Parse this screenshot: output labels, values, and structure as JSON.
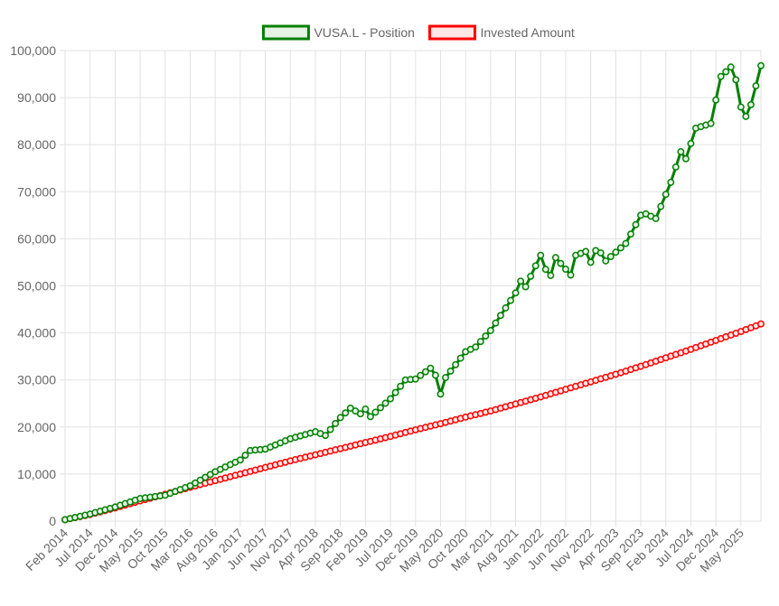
{
  "chart_data": {
    "type": "line",
    "legend_position": "top",
    "grid": true,
    "ylim": [
      0,
      100000
    ],
    "y_ticks": [
      "0",
      "10,000",
      "20,000",
      "30,000",
      "40,000",
      "50,000",
      "60,000",
      "70,000",
      "80,000",
      "90,000",
      "100,000"
    ],
    "x_start": "2014-02",
    "x_end": "2025-09",
    "x_tick_labels": [
      "Feb 2014",
      "Jul 2014",
      "Dec 2014",
      "May 2015",
      "Oct 2015",
      "Mar 2016",
      "Aug 2016",
      "Jan 2017",
      "Jun 2017",
      "Nov 2017",
      "Apr 2018",
      "Sep 2018",
      "Feb 2019",
      "Jul 2019",
      "Dec 2019",
      "May 2020",
      "Oct 2020",
      "Mar 2021",
      "Aug 2021",
      "Jan 2022",
      "Jun 2022",
      "Nov 2022",
      "Apr 2023",
      "Sep 2023",
      "Feb 2024",
      "Jul 2024",
      "Dec 2024",
      "May 2025"
    ],
    "series": [
      {
        "name": "VUSA.L - Position",
        "color": "#008000",
        "fill": "#e6f2e6",
        "anchors": [
          [
            "2014-02",
            300
          ],
          [
            "2014-07",
            1500
          ],
          [
            "2014-12",
            3000
          ],
          [
            "2015-05",
            4800
          ],
          [
            "2015-10",
            5500
          ],
          [
            "2016-03",
            7500
          ],
          [
            "2016-08",
            10500
          ],
          [
            "2017-01",
            13000
          ],
          [
            "2017-03",
            15000
          ],
          [
            "2017-06",
            15300
          ],
          [
            "2017-11",
            17500
          ],
          [
            "2018-04",
            19000
          ],
          [
            "2018-06",
            18200
          ],
          [
            "2018-09",
            22000
          ],
          [
            "2018-11",
            24000
          ],
          [
            "2019-01",
            22800
          ],
          [
            "2019-02",
            23800
          ],
          [
            "2019-03",
            22200
          ],
          [
            "2019-07",
            26000
          ],
          [
            "2019-10",
            30000
          ],
          [
            "2019-12",
            30200
          ],
          [
            "2020-03",
            32500
          ],
          [
            "2020-04",
            31000
          ],
          [
            "2020-05",
            27000
          ],
          [
            "2020-06",
            30500
          ],
          [
            "2020-10",
            36000
          ],
          [
            "2020-12",
            37000
          ],
          [
            "2021-03",
            40500
          ],
          [
            "2021-08",
            48500
          ],
          [
            "2021-09",
            51000
          ],
          [
            "2021-10",
            49800
          ],
          [
            "2022-01",
            56500
          ],
          [
            "2022-02",
            53500
          ],
          [
            "2022-03",
            52200
          ],
          [
            "2022-04",
            56000
          ],
          [
            "2022-07",
            52300
          ],
          [
            "2022-08",
            56500
          ],
          [
            "2022-10",
            57300
          ],
          [
            "2022-11",
            55000
          ],
          [
            "2022-12",
            57500
          ],
          [
            "2023-01",
            57000
          ],
          [
            "2023-02",
            55300
          ],
          [
            "2023-06",
            59000
          ],
          [
            "2023-09",
            65000
          ],
          [
            "2023-10",
            65300
          ],
          [
            "2023-12",
            64300
          ],
          [
            "2024-03",
            72000
          ],
          [
            "2024-05",
            78500
          ],
          [
            "2024-06",
            77000
          ],
          [
            "2024-08",
            83500
          ],
          [
            "2024-11",
            84500
          ],
          [
            "2025-01",
            94500
          ],
          [
            "2025-03",
            96500
          ],
          [
            "2025-04",
            93800
          ],
          [
            "2025-05",
            88000
          ],
          [
            "2025-06",
            86000
          ],
          [
            "2025-07",
            88500
          ],
          [
            "2025-08",
            92500
          ],
          [
            "2025-09",
            96800
          ]
        ]
      },
      {
        "name": "Invested Amount",
        "color": "#ff0000",
        "fill": "#fde6e6",
        "anchors": [
          [
            "2014-02",
            300
          ],
          [
            "2014-07",
            1400
          ],
          [
            "2014-12",
            2800
          ],
          [
            "2015-05",
            4300
          ],
          [
            "2015-10",
            5700
          ],
          [
            "2016-03",
            7200
          ],
          [
            "2016-08",
            8600
          ],
          [
            "2017-01",
            10000
          ],
          [
            "2017-06",
            11400
          ],
          [
            "2017-11",
            12800
          ],
          [
            "2018-04",
            14100
          ],
          [
            "2018-09",
            15400
          ],
          [
            "2019-02",
            16700
          ],
          [
            "2019-07",
            18000
          ],
          [
            "2019-12",
            19400
          ],
          [
            "2020-05",
            20700
          ],
          [
            "2020-10",
            22100
          ],
          [
            "2021-03",
            23400
          ],
          [
            "2021-08",
            24900
          ],
          [
            "2022-01",
            26400
          ],
          [
            "2022-06",
            28000
          ],
          [
            "2022-11",
            29600
          ],
          [
            "2023-04",
            31200
          ],
          [
            "2023-09",
            32900
          ],
          [
            "2024-02",
            34700
          ],
          [
            "2024-07",
            36500
          ],
          [
            "2024-12",
            38400
          ],
          [
            "2025-05",
            40300
          ],
          [
            "2025-09",
            41900
          ]
        ]
      }
    ]
  }
}
